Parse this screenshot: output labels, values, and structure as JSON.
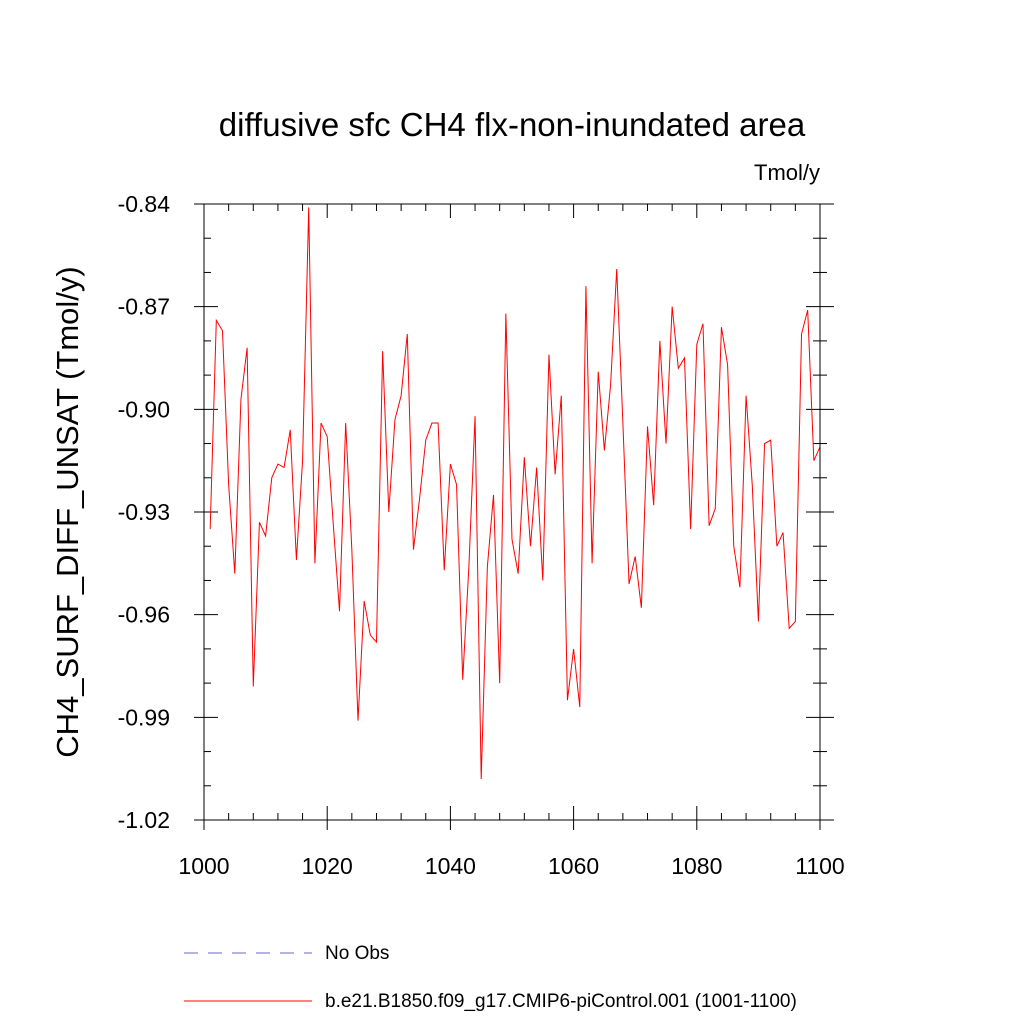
{
  "chart_data": {
    "type": "line",
    "title": "diffusive sfc CH4 flx-non-inundated area",
    "units": "Tmol/y",
    "xlabel": "",
    "ylabel": "CH4_SURF_DIFF_UNSAT  (Tmol/y)",
    "xlim": [
      1000,
      1100
    ],
    "ylim": [
      -1.02,
      -0.84
    ],
    "xticks": [
      1000,
      1020,
      1040,
      1060,
      1080,
      1100
    ],
    "xtick_labels": [
      "1000",
      "1020",
      "1040",
      "1060",
      "1080",
      "1100"
    ],
    "yticks": [
      -0.84,
      -0.87,
      -0.9,
      -0.93,
      -0.96,
      -0.99,
      -1.02
    ],
    "ytick_labels": [
      "-0.84",
      "-0.87",
      "-0.90",
      "-0.93",
      "-0.96",
      "-0.99",
      "-1.02"
    ],
    "x_minor_step": 4,
    "y_minor_step": 0.01,
    "grid": false,
    "legend_position": "bottom",
    "legend": [
      {
        "name": "No Obs",
        "color": "#6666cc",
        "style": "dashed"
      },
      {
        "name": "b.e21.B1850.f09_g17.CMIP6-piControl.001 (1001-1100)",
        "color": "#ff0000",
        "style": "solid"
      }
    ],
    "series": [
      {
        "name": "b.e21.B1850.f09_g17.CMIP6-piControl.001 (1001-1100)",
        "color": "#ff0000",
        "x": [
          1001,
          1002,
          1003,
          1004,
          1005,
          1006,
          1007,
          1008,
          1009,
          1010,
          1011,
          1012,
          1013,
          1014,
          1015,
          1016,
          1017,
          1018,
          1019,
          1020,
          1021,
          1022,
          1023,
          1024,
          1025,
          1026,
          1027,
          1028,
          1029,
          1030,
          1031,
          1032,
          1033,
          1034,
          1035,
          1036,
          1037,
          1038,
          1039,
          1040,
          1041,
          1042,
          1043,
          1044,
          1045,
          1046,
          1047,
          1048,
          1049,
          1050,
          1051,
          1052,
          1053,
          1054,
          1055,
          1056,
          1057,
          1058,
          1059,
          1060,
          1061,
          1062,
          1063,
          1064,
          1065,
          1066,
          1067,
          1068,
          1069,
          1070,
          1071,
          1072,
          1073,
          1074,
          1075,
          1076,
          1077,
          1078,
          1079,
          1080,
          1081,
          1082,
          1083,
          1084,
          1085,
          1086,
          1087,
          1088,
          1089,
          1090,
          1091,
          1092,
          1093,
          1094,
          1095,
          1096,
          1097,
          1098,
          1099,
          1100
        ],
        "values": [
          -0.935,
          -0.874,
          -0.877,
          -0.922,
          -0.948,
          -0.897,
          -0.882,
          -0.981,
          -0.933,
          -0.937,
          -0.92,
          -0.916,
          -0.917,
          -0.906,
          -0.944,
          -0.915,
          -0.841,
          -0.945,
          -0.904,
          -0.908,
          -0.934,
          -0.959,
          -0.904,
          -0.941,
          -0.991,
          -0.956,
          -0.966,
          -0.968,
          -0.883,
          -0.93,
          -0.903,
          -0.896,
          -0.878,
          -0.941,
          -0.926,
          -0.909,
          -0.904,
          -0.904,
          -0.947,
          -0.916,
          -0.922,
          -0.979,
          -0.946,
          -0.902,
          -1.008,
          -0.946,
          -0.925,
          -0.98,
          -0.872,
          -0.938,
          -0.948,
          -0.914,
          -0.94,
          -0.917,
          -0.95,
          -0.884,
          -0.919,
          -0.896,
          -0.985,
          -0.97,
          -0.987,
          -0.864,
          -0.945,
          -0.889,
          -0.912,
          -0.893,
          -0.859,
          -0.904,
          -0.951,
          -0.943,
          -0.958,
          -0.905,
          -0.928,
          -0.88,
          -0.91,
          -0.87,
          -0.888,
          -0.885,
          -0.935,
          -0.881,
          -0.875,
          -0.934,
          -0.929,
          -0.876,
          -0.887,
          -0.94,
          -0.952,
          -0.896,
          -0.922,
          -0.962,
          -0.91,
          -0.909,
          -0.94,
          -0.936,
          -0.964,
          -0.962,
          -0.878,
          -0.871,
          -0.915,
          -0.911
        ]
      }
    ]
  }
}
